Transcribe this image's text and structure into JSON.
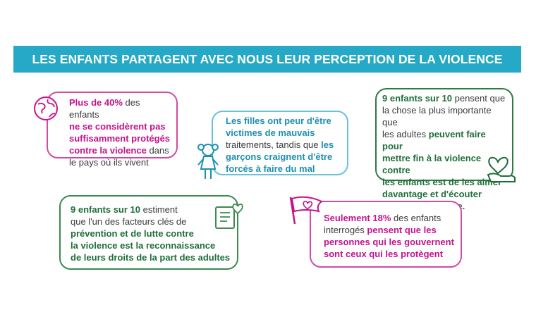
{
  "banner": {
    "title": "LES ENFANTS PARTAGENT AVEC NOUS LEUR PERCEPTION DE LA VIOLENCE"
  },
  "card1": {
    "l1a": "Plus de ",
    "l1b": "40%",
    "l1c": " des enfants",
    "l2": "ne se considèrent pas",
    "l3": "suffisamment protégés",
    "l4a": "contre la violence",
    "l4b": " dans",
    "l5": "le pays où ils vivent"
  },
  "card2": {
    "l1": "Les filles ont peur d'être",
    "l2": "victimes de mauvais",
    "l3a": "traitements, tandis que ",
    "l3b": "les",
    "l4": "garçons craignent d'être",
    "l5": "forcés à faire du mal"
  },
  "card3": {
    "l1a": "9",
    "l1b": " enfants sur ",
    "l1c": "10",
    "l1d": " pensent que",
    "l2": "la chose la plus importante que",
    "l3a": "les adultes ",
    "l3b": "peuvent faire pour",
    "l4": "mettre fin à la violence contre",
    "l5": "les enfants est de les aimer",
    "l6": "davantage et d'écouter",
    "l7": "ce qu'ils ont à dire."
  },
  "card4": {
    "l1a": "9",
    "l1b": " enfants sur ",
    "l1c": "10",
    "l1d": " estiment",
    "l2": "que l'un des facteurs clés de",
    "l3": "prévention et de lutte contre",
    "l4": "la violence est la reconnaissance",
    "l5": "de leurs droits de la part des adultes"
  },
  "card5": {
    "l1a": "Seulement ",
    "l1b": "18%",
    "l1c": " des enfants",
    "l2a": "interrogés ",
    "l2b": "pensent que les",
    "l3": "personnes qui  les gouvernent",
    "l4": "sont ceux qui les protègent"
  },
  "colors": {
    "banner": "#25a9c6",
    "magenta": "#c5128d",
    "teal": "#1d90b0",
    "green": "#1f6e3a"
  },
  "icons": [
    "globe-icon",
    "girl-icon",
    "heart-hand-icon",
    "book-heart-icon",
    "heart-flag-icon"
  ]
}
